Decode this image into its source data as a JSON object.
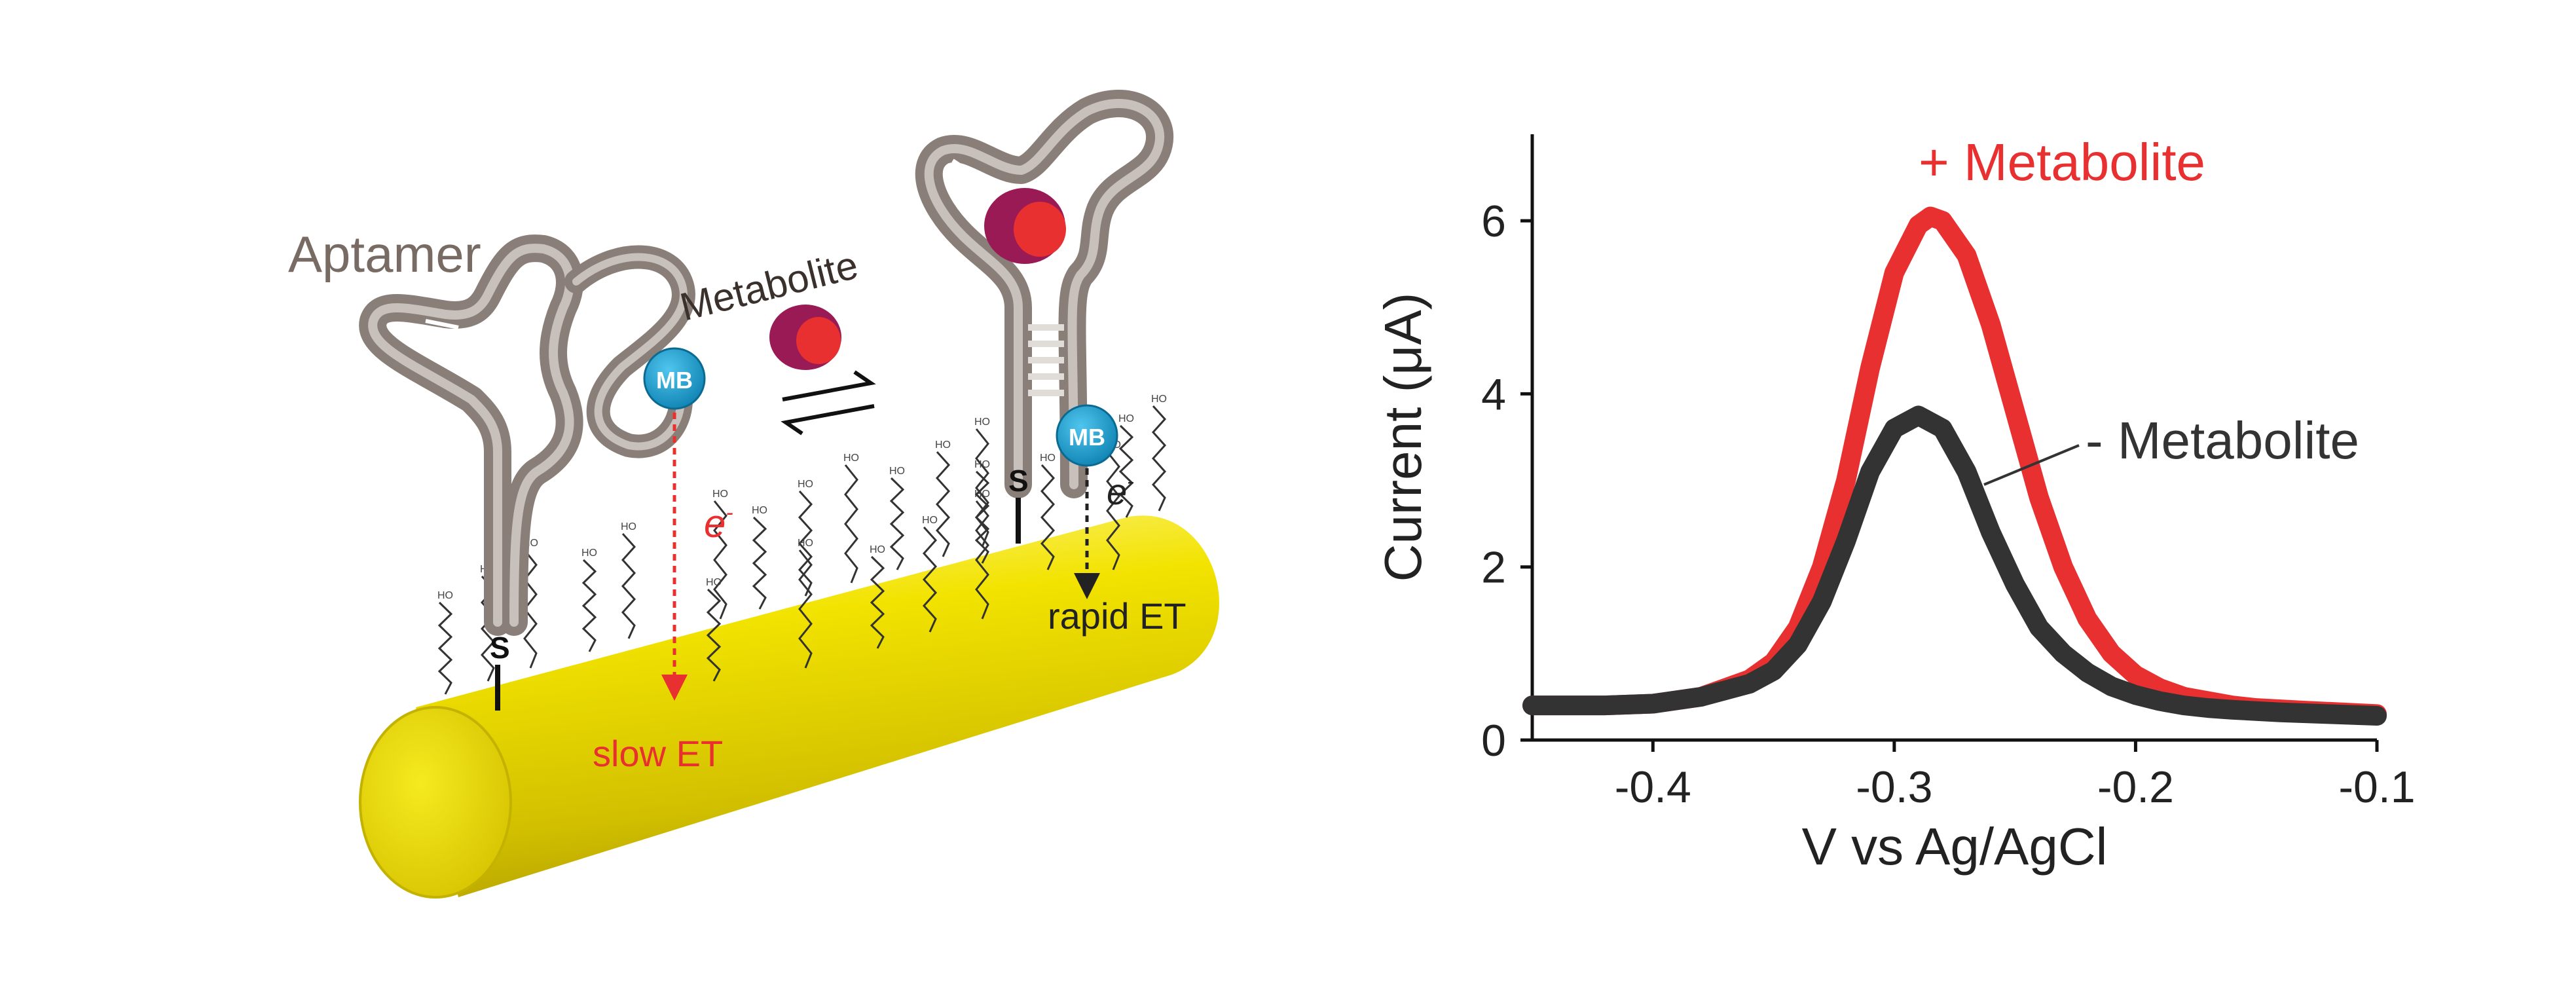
{
  "diagram": {
    "labels": {
      "aptamer": "Aptamer",
      "metabolite": "Metabolite",
      "mb": "MB",
      "thiol": "S",
      "electron": "e",
      "electron_sup": "-",
      "slow_et": "slow ET",
      "rapid_et": "rapid ET",
      "ho": "HO"
    },
    "colors": {
      "electrode": "#f0e000",
      "aptamer": "#8a7f78",
      "methylene_blue": "#1aa0d0",
      "metabolite_outer": "#9a1a55",
      "metabolite_inner": "#e83030",
      "slow_arrow": "#e83030",
      "label_red": "#e83030"
    }
  },
  "chart_data": {
    "type": "line",
    "xlabel": "V vs Ag/AgCl",
    "ylabel": "Current (μA)",
    "xlim": [
      -0.45,
      -0.1
    ],
    "ylim": [
      0,
      7
    ],
    "xticks": [
      -0.4,
      -0.3,
      -0.2,
      -0.1
    ],
    "xtick_labels": [
      "-0.4",
      "-0.3",
      "-0.2",
      "-0.1"
    ],
    "yticks": [
      0,
      2,
      4,
      6
    ],
    "ytick_labels": [
      "0",
      "2",
      "4",
      "6"
    ],
    "grid": false,
    "series": [
      {
        "name": "+ Metabolite",
        "color": "#e83030",
        "x": [
          -0.45,
          -0.42,
          -0.4,
          -0.38,
          -0.36,
          -0.35,
          -0.34,
          -0.33,
          -0.32,
          -0.31,
          -0.3,
          -0.29,
          -0.285,
          -0.28,
          -0.27,
          -0.26,
          -0.25,
          -0.24,
          -0.23,
          -0.22,
          -0.21,
          -0.2,
          -0.19,
          -0.18,
          -0.17,
          -0.16,
          -0.15,
          -0.13,
          -0.1
        ],
        "y": [
          0.4,
          0.4,
          0.42,
          0.5,
          0.7,
          0.9,
          1.3,
          2.0,
          3.0,
          4.3,
          5.4,
          5.95,
          6.05,
          6.0,
          5.6,
          4.8,
          3.8,
          2.8,
          2.0,
          1.4,
          1.0,
          0.75,
          0.6,
          0.5,
          0.45,
          0.4,
          0.37,
          0.34,
          0.3
        ]
      },
      {
        "name": "- Metabolite",
        "color": "#333333",
        "x": [
          -0.45,
          -0.42,
          -0.4,
          -0.38,
          -0.36,
          -0.35,
          -0.34,
          -0.33,
          -0.32,
          -0.31,
          -0.3,
          -0.29,
          -0.28,
          -0.27,
          -0.26,
          -0.25,
          -0.24,
          -0.23,
          -0.22,
          -0.21,
          -0.2,
          -0.19,
          -0.18,
          -0.17,
          -0.16,
          -0.14,
          -0.12,
          -0.1
        ],
        "y": [
          0.4,
          0.4,
          0.42,
          0.5,
          0.65,
          0.8,
          1.1,
          1.6,
          2.3,
          3.1,
          3.6,
          3.75,
          3.6,
          3.1,
          2.4,
          1.8,
          1.3,
          1.0,
          0.78,
          0.62,
          0.52,
          0.45,
          0.4,
          0.37,
          0.35,
          0.32,
          0.3,
          0.28
        ]
      }
    ],
    "annotations": [
      {
        "text": "+ Metabolite",
        "color": "#e83030"
      },
      {
        "text": "- Metabolite",
        "color": "#333333"
      }
    ]
  }
}
